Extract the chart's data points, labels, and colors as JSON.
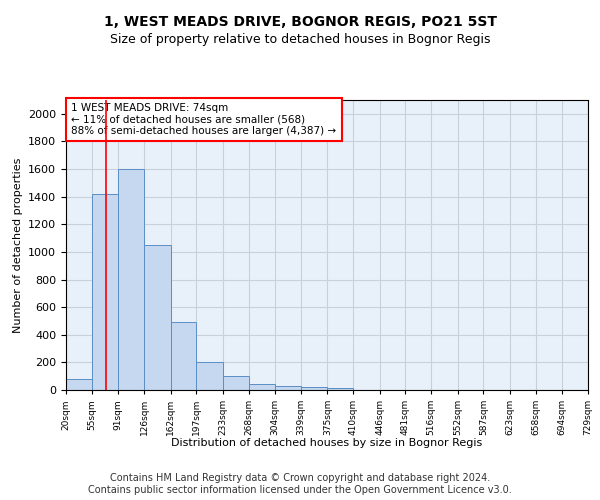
{
  "title": "1, WEST MEADS DRIVE, BOGNOR REGIS, PO21 5ST",
  "subtitle": "Size of property relative to detached houses in Bognor Regis",
  "xlabel": "Distribution of detached houses by size in Bognor Regis",
  "ylabel": "Number of detached properties",
  "bar_edges": [
    20,
    55,
    91,
    126,
    162,
    197,
    233,
    268,
    304,
    339,
    375,
    410,
    446,
    481,
    516,
    552,
    587,
    623,
    658,
    694,
    729
  ],
  "bar_heights": [
    80,
    1420,
    1600,
    1050,
    490,
    205,
    105,
    40,
    28,
    20,
    15,
    0,
    0,
    0,
    0,
    0,
    0,
    0,
    0,
    0
  ],
  "bar_color": "#c5d8f0",
  "bar_edge_color": "#5a8ec5",
  "grid_color": "#c8d0dc",
  "background_color": "#e8f0fa",
  "red_line_x": 74,
  "annotation_text": "1 WEST MEADS DRIVE: 74sqm\n← 11% of detached houses are smaller (568)\n88% of semi-detached houses are larger (4,387) →",
  "annotation_box_color": "white",
  "annotation_box_edge": "red",
  "ylim": [
    0,
    2100
  ],
  "yticks": [
    0,
    200,
    400,
    600,
    800,
    1000,
    1200,
    1400,
    1600,
    1800,
    2000
  ],
  "tick_labels": [
    "20sqm",
    "55sqm",
    "91sqm",
    "126sqm",
    "162sqm",
    "197sqm",
    "233sqm",
    "268sqm",
    "304sqm",
    "339sqm",
    "375sqm",
    "410sqm",
    "446sqm",
    "481sqm",
    "516sqm",
    "552sqm",
    "587sqm",
    "623sqm",
    "658sqm",
    "694sqm",
    "729sqm"
  ],
  "footer": "Contains HM Land Registry data © Crown copyright and database right 2024.\nContains public sector information licensed under the Open Government Licence v3.0.",
  "title_fontsize": 10,
  "subtitle_fontsize": 9,
  "footer_fontsize": 7
}
